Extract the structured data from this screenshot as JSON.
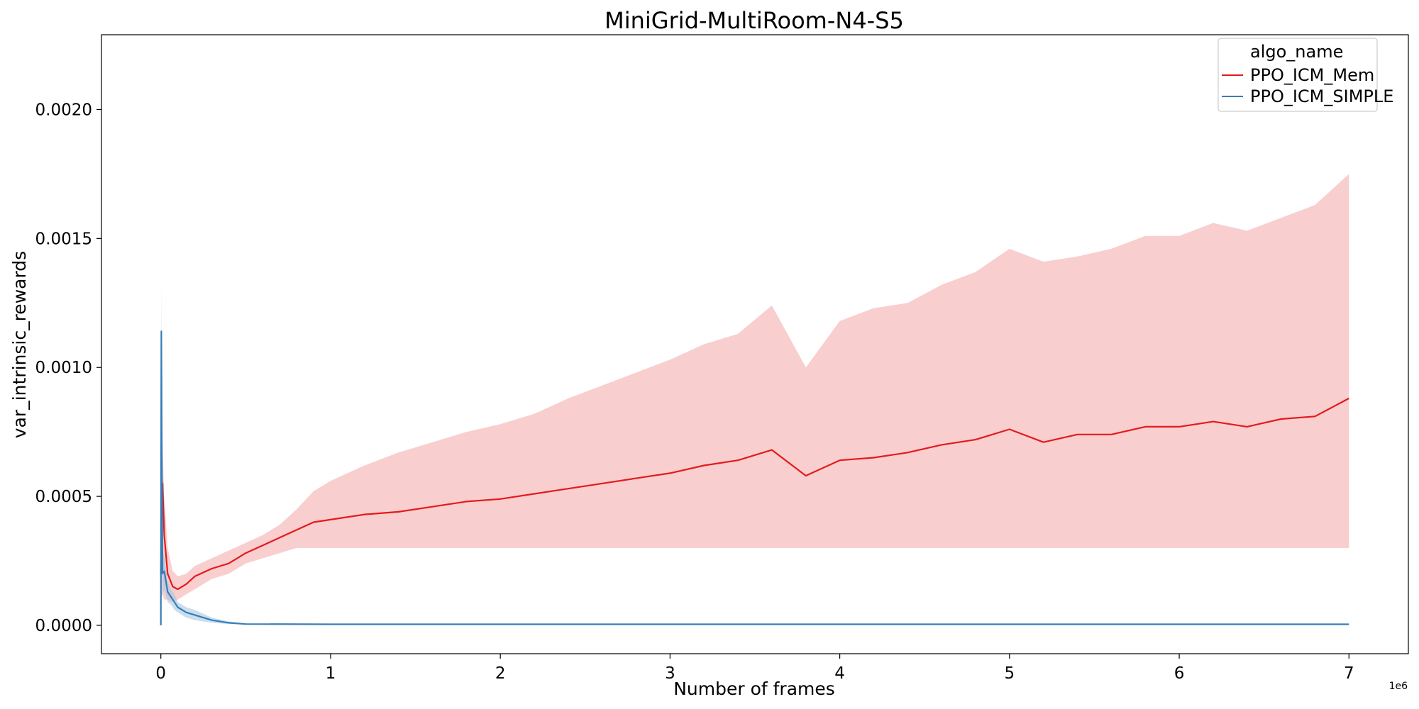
{
  "chart_data": {
    "type": "line",
    "title": "MiniGrid-MultiRoom-N4-S5",
    "xlabel": "Number of frames",
    "ylabel": "var_intrinsic_rewards",
    "x_offset_label": "1e6",
    "xlim": [
      -350000,
      7350000
    ],
    "ylim": [
      -0.00011,
      0.00229
    ],
    "x_ticks": [
      0,
      1000000,
      2000000,
      3000000,
      4000000,
      5000000,
      6000000,
      7000000
    ],
    "x_tick_labels": [
      "0",
      "1",
      "2",
      "3",
      "4",
      "5",
      "6",
      "7"
    ],
    "y_ticks": [
      0,
      0.0005,
      0.001,
      0.0015,
      0.002
    ],
    "y_tick_labels": [
      "0.0000",
      "0.0005",
      "0.0010",
      "0.0015",
      "0.0020"
    ],
    "grid": false,
    "legend": {
      "title": "algo_name",
      "placement": "top-right",
      "entries": [
        "PPO_ICM_Mem",
        "PPO_ICM_SIMPLE"
      ]
    },
    "series": [
      {
        "name": "PPO_ICM_Mem",
        "color": "#e41a1c",
        "band_color": "#f4a6a6",
        "x": [
          0,
          10000,
          20000,
          40000,
          70000,
          100000,
          150000,
          200000,
          300000,
          400000,
          500000,
          600000,
          700000,
          800000,
          900000,
          1000000,
          1200000,
          1400000,
          1600000,
          1800000,
          2000000,
          2200000,
          2400000,
          2600000,
          2800000,
          3000000,
          3200000,
          3400000,
          3600000,
          3800000,
          4000000,
          4200000,
          4400000,
          4600000,
          4800000,
          5000000,
          5200000,
          5400000,
          5600000,
          5800000,
          6000000,
          6200000,
          6400000,
          6600000,
          6800000,
          7000000
        ],
        "y": [
          0.0002,
          0.00055,
          0.00035,
          0.0002,
          0.00015,
          0.00014,
          0.00016,
          0.00019,
          0.00022,
          0.00024,
          0.00028,
          0.00031,
          0.00034,
          0.00037,
          0.0004,
          0.00041,
          0.00043,
          0.00044,
          0.00046,
          0.00048,
          0.00049,
          0.00051,
          0.00053,
          0.00055,
          0.00057,
          0.00059,
          0.00062,
          0.00064,
          0.00068,
          0.00058,
          0.00064,
          0.00065,
          0.00067,
          0.0007,
          0.00072,
          0.00076,
          0.00071,
          0.00074,
          0.00074,
          0.00077,
          0.00077,
          0.00079,
          0.00077,
          0.0008,
          0.00081,
          0.00088
        ],
        "y_lower": [
          0.0001,
          0.00012,
          0.0001,
          0.0001,
          9e-05,
          0.0001,
          0.00012,
          0.00014,
          0.00018,
          0.0002,
          0.00024,
          0.00026,
          0.00028,
          0.0003,
          0.0003,
          0.0003,
          0.0003,
          0.0003,
          0.0003,
          0.0003,
          0.0003,
          0.0003,
          0.0003,
          0.0003,
          0.0003,
          0.0003,
          0.0003,
          0.0003,
          0.0003,
          0.0003,
          0.0003,
          0.0003,
          0.0003,
          0.0003,
          0.0003,
          0.0003,
          0.0003,
          0.0003,
          0.0003,
          0.0003,
          0.0003,
          0.0003,
          0.0003,
          0.0003,
          0.0003,
          0.0003
        ],
        "y_upper": [
          0.0003,
          0.0007,
          0.0005,
          0.0003,
          0.00021,
          0.00019,
          0.0002,
          0.00023,
          0.00026,
          0.00029,
          0.00032,
          0.00035,
          0.00039,
          0.00045,
          0.00052,
          0.00056,
          0.00062,
          0.00067,
          0.00071,
          0.00075,
          0.00078,
          0.00082,
          0.00088,
          0.00093,
          0.00098,
          0.00103,
          0.00109,
          0.00113,
          0.00124,
          0.001,
          0.00118,
          0.00123,
          0.00125,
          0.00132,
          0.00137,
          0.00146,
          0.00141,
          0.00143,
          0.00146,
          0.00151,
          0.00151,
          0.00156,
          0.00153,
          0.00158,
          0.00163,
          0.00175
        ]
      },
      {
        "name": "PPO_ICM_SIMPLE",
        "color": "#377eb8",
        "band_color": "#9fc3e0",
        "x": [
          0,
          3000,
          6000,
          10000,
          20000,
          40000,
          60000,
          80000,
          100000,
          150000,
          200000,
          300000,
          400000,
          500000,
          1000000,
          2000000,
          3000000,
          4000000,
          5000000,
          6000000,
          7000000
        ],
        "y": [
          0.0,
          0.00114,
          0.0006,
          0.0002,
          0.00021,
          0.00013,
          0.00011,
          9e-05,
          7e-05,
          5e-05,
          4e-05,
          2e-05,
          1e-05,
          5e-06,
          4e-06,
          4e-06,
          4e-06,
          4e-06,
          4e-06,
          4e-06,
          4e-06
        ],
        "y_lower": [
          0.0,
          0.0009,
          0.0004,
          0.00012,
          0.00014,
          9e-05,
          8e-05,
          6e-05,
          5e-05,
          3e-05,
          2e-05,
          1e-05,
          5e-06,
          3e-06,
          3e-06,
          3e-06,
          3e-06,
          3e-06,
          3e-06,
          3e-06,
          3e-06
        ],
        "y_upper": [
          0.0,
          0.00134,
          0.0008,
          0.00028,
          0.00027,
          0.00017,
          0.00014,
          0.00012,
          9e-05,
          7e-05,
          6e-05,
          3e-05,
          1.5e-05,
          7e-06,
          5e-06,
          5e-06,
          5e-06,
          5e-06,
          5e-06,
          5e-06,
          5e-06
        ]
      }
    ]
  }
}
